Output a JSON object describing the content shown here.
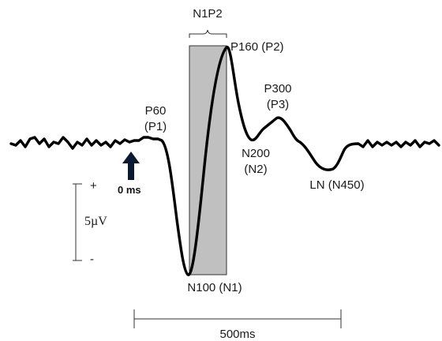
{
  "labels": {
    "n1p2": "N1P2",
    "p160_line1": "P160 (P2)",
    "p300_line1": "P300",
    "p300_line2": "(P3)",
    "p60_line1": "P60",
    "p60_line2": "(P1)",
    "n200_line1": "N200",
    "n200_line2": "(N2)",
    "ln": "LN (N450)",
    "n100": "N100 (N1)",
    "onset": "0 ms"
  },
  "scale": {
    "amplitude_label": "5µV",
    "plus": "+",
    "minus": "-"
  },
  "time_bar": {
    "label": "500ms"
  },
  "colors": {
    "waveform": "#000000",
    "highlight_fill": "#c0c0c0",
    "arrow": "#0a1a33",
    "text": "#1a1a1a"
  },
  "icons": {
    "onset_marker": "up-arrow-icon"
  }
}
